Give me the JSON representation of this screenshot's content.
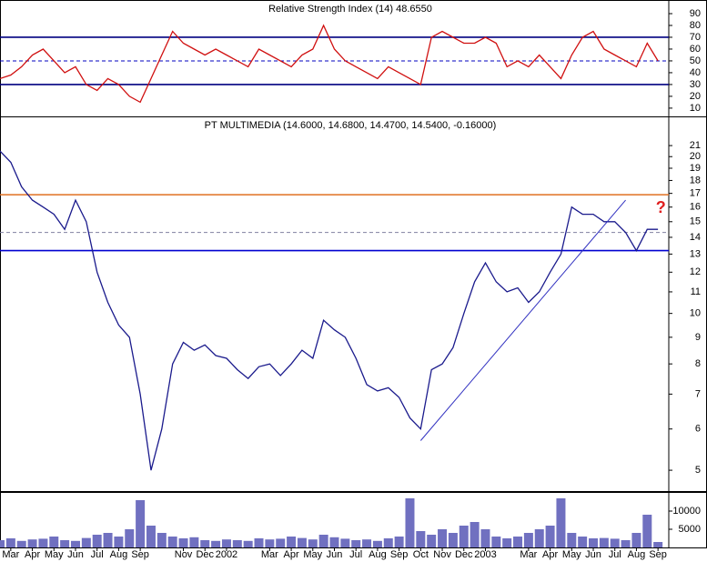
{
  "chart_data": [
    {
      "type": "line",
      "title": "Relative Strength Index (14) 48.6550",
      "color": "#d01010",
      "log": false,
      "x": [
        -0.5,
        0,
        0.5,
        1,
        1.5,
        2,
        2.5,
        3,
        3.5,
        4,
        4.5,
        5,
        5.5,
        6,
        6.5,
        7,
        7.5,
        8,
        8.5,
        9,
        9.5,
        10,
        10.5,
        11,
        11.5,
        12,
        12.5,
        13,
        13.5,
        14,
        14.5,
        15,
        15.5,
        16,
        16.5,
        17,
        17.5,
        18,
        18.5,
        19,
        19.5,
        20,
        20.5,
        21,
        21.5,
        22,
        22.5,
        23,
        23.5,
        24,
        24.5,
        25,
        25.5,
        26,
        26.5,
        27,
        27.5,
        28,
        28.5,
        29,
        29.5,
        30
      ],
      "values": [
        35,
        38,
        45,
        55,
        60,
        50,
        40,
        45,
        30,
        25,
        35,
        30,
        20,
        15,
        35,
        55,
        75,
        65,
        60,
        55,
        60,
        55,
        50,
        45,
        60,
        55,
        50,
        45,
        55,
        60,
        80,
        60,
        50,
        45,
        40,
        35,
        45,
        40,
        35,
        30,
        70,
        75,
        70,
        65,
        65,
        70,
        65,
        45,
        50,
        45,
        55,
        45,
        35,
        55,
        70,
        75,
        60,
        55,
        50,
        45,
        65,
        50
      ],
      "xlim": [
        -0.5,
        30.5
      ],
      "ylim": [
        3,
        100
      ],
      "yticks": [
        10,
        20,
        30,
        40,
        50,
        60,
        70,
        80,
        90
      ],
      "hlines": [
        {
          "value": 70,
          "color": "#000080",
          "dash": false
        },
        {
          "value": 50,
          "color": "#0000c0",
          "dash": true
        },
        {
          "value": 30,
          "color": "#000080",
          "dash": false
        }
      ]
    },
    {
      "type": "line",
      "title": "PT MULTIMEDIA (14.6000, 14.6800, 14.4700, 14.5400, -0.16000)",
      "color": "#1a1a8c",
      "log": true,
      "x": [
        -0.5,
        0,
        0.5,
        1,
        1.5,
        2,
        2.5,
        3,
        3.5,
        4,
        4.5,
        5,
        5.5,
        6,
        6.5,
        7,
        7.5,
        8,
        8.5,
        9,
        9.5,
        10,
        10.5,
        11,
        11.5,
        12,
        12.5,
        13,
        13.5,
        14,
        14.5,
        15,
        15.5,
        16,
        16.5,
        17,
        17.5,
        18,
        18.5,
        19,
        19.5,
        20,
        20.5,
        21,
        21.5,
        22,
        22.5,
        23,
        23.5,
        24,
        24.5,
        25,
        25.5,
        26,
        26.5,
        27,
        27.5,
        28,
        28.5,
        29,
        29.5,
        30
      ],
      "values": [
        20.5,
        19.5,
        17.5,
        16.5,
        16,
        15.5,
        14.5,
        16.5,
        15,
        12,
        10.5,
        9.5,
        9,
        7,
        5,
        6,
        8,
        8.8,
        8.5,
        8.7,
        8.3,
        8.2,
        7.8,
        7.5,
        7.9,
        8,
        7.6,
        8,
        8.5,
        8.2,
        9.7,
        9.3,
        9,
        8.2,
        7.3,
        7.1,
        7.2,
        6.9,
        6.3,
        6,
        7.8,
        8,
        8.6,
        10,
        11.5,
        12.5,
        11.5,
        11,
        11.2,
        10.5,
        11,
        12,
        13,
        16,
        15.5,
        15.5,
        15,
        15,
        14.3,
        13.2,
        14.5,
        14.5
      ],
      "xlim": [
        -0.5,
        30.5
      ],
      "ylim": [
        4.56,
        23.7
      ],
      "yticks": [
        5,
        6,
        7,
        8,
        9,
        10,
        11,
        12,
        13,
        14,
        15,
        16,
        17,
        18,
        19,
        20,
        21
      ],
      "hlines": [
        {
          "value": 16.9,
          "color": "#e07020",
          "dash": false
        },
        {
          "value": 14.3,
          "color": "#8080a0",
          "dash": true
        },
        {
          "value": 13.2,
          "color": "#0000d0",
          "dash": false
        }
      ],
      "trendline": {
        "x": [
          19,
          28.5
        ],
        "values": [
          5.7,
          16.5
        ],
        "color": "#3030c0"
      },
      "annotation": {
        "text": "?",
        "x": 29.9,
        "value": 15.9,
        "color": "#e02020"
      }
    },
    {
      "type": "bar",
      "color": "#7070c0",
      "log": false,
      "x": [
        -0.5,
        0,
        0.5,
        1,
        1.5,
        2,
        2.5,
        3,
        3.5,
        4,
        4.5,
        5,
        5.5,
        6,
        6.5,
        7,
        7.5,
        8,
        8.5,
        9,
        9.5,
        10,
        10.5,
        11,
        11.5,
        12,
        12.5,
        13,
        13.5,
        14,
        14.5,
        15,
        15.5,
        16,
        16.5,
        17,
        17.5,
        18,
        18.5,
        19,
        19.5,
        20,
        20.5,
        21,
        21.5,
        22,
        22.5,
        23,
        23.5,
        24,
        24.5,
        25,
        25.5,
        26,
        26.5,
        27,
        27.5,
        28,
        28.5,
        29,
        29.5,
        30
      ],
      "values": [
        2000,
        2500,
        1800,
        2200,
        2400,
        3000,
        2000,
        1800,
        2600,
        3500,
        4000,
        3000,
        5000,
        13000,
        6000,
        4000,
        3000,
        2500,
        2800,
        2000,
        1800,
        2200,
        2000,
        1800,
        2500,
        2200,
        2400,
        3000,
        2600,
        2200,
        3500,
        2800,
        2400,
        2000,
        2200,
        1800,
        2500,
        3000,
        13500,
        4500,
        3500,
        5000,
        4000,
        6000,
        7000,
        5000,
        3000,
        2500,
        3000,
        4000,
        5000,
        6000,
        13500,
        4000,
        3000,
        2500,
        2600,
        2400,
        2000,
        4000,
        9000,
        1500
      ],
      "xlim": [
        -0.5,
        30.5
      ],
      "ylim": [
        0,
        14750
      ],
      "yticks": [
        5000,
        10000
      ],
      "xticks": [
        {
          "value": 0,
          "label": "Mar"
        },
        {
          "value": 1,
          "label": "Apr"
        },
        {
          "value": 2,
          "label": "May"
        },
        {
          "value": 3,
          "label": "Jun"
        },
        {
          "value": 4,
          "label": "Jul"
        },
        {
          "value": 5,
          "label": "Aug"
        },
        {
          "value": 6,
          "label": "Sep"
        },
        {
          "value": 8,
          "label": "Nov"
        },
        {
          "value": 9,
          "label": "Dec"
        },
        {
          "value": 10,
          "label": "2002"
        },
        {
          "value": 12,
          "label": "Mar"
        },
        {
          "value": 13,
          "label": "Apr"
        },
        {
          "value": 14,
          "label": "May"
        },
        {
          "value": 15,
          "label": "Jun"
        },
        {
          "value": 16,
          "label": "Jul"
        },
        {
          "value": 17,
          "label": "Aug"
        },
        {
          "value": 18,
          "label": "Sep"
        },
        {
          "value": 19,
          "label": "Oct"
        },
        {
          "value": 20,
          "label": "Nov"
        },
        {
          "value": 21,
          "label": "Dec"
        },
        {
          "value": 22,
          "label": "2003"
        },
        {
          "value": 24,
          "label": "Mar"
        },
        {
          "value": 25,
          "label": "Apr"
        },
        {
          "value": 26,
          "label": "May"
        },
        {
          "value": 27,
          "label": "Jun"
        },
        {
          "value": 28,
          "label": "Jul"
        },
        {
          "value": 29,
          "label": "Aug"
        },
        {
          "value": 30,
          "label": "Sep"
        }
      ]
    }
  ]
}
